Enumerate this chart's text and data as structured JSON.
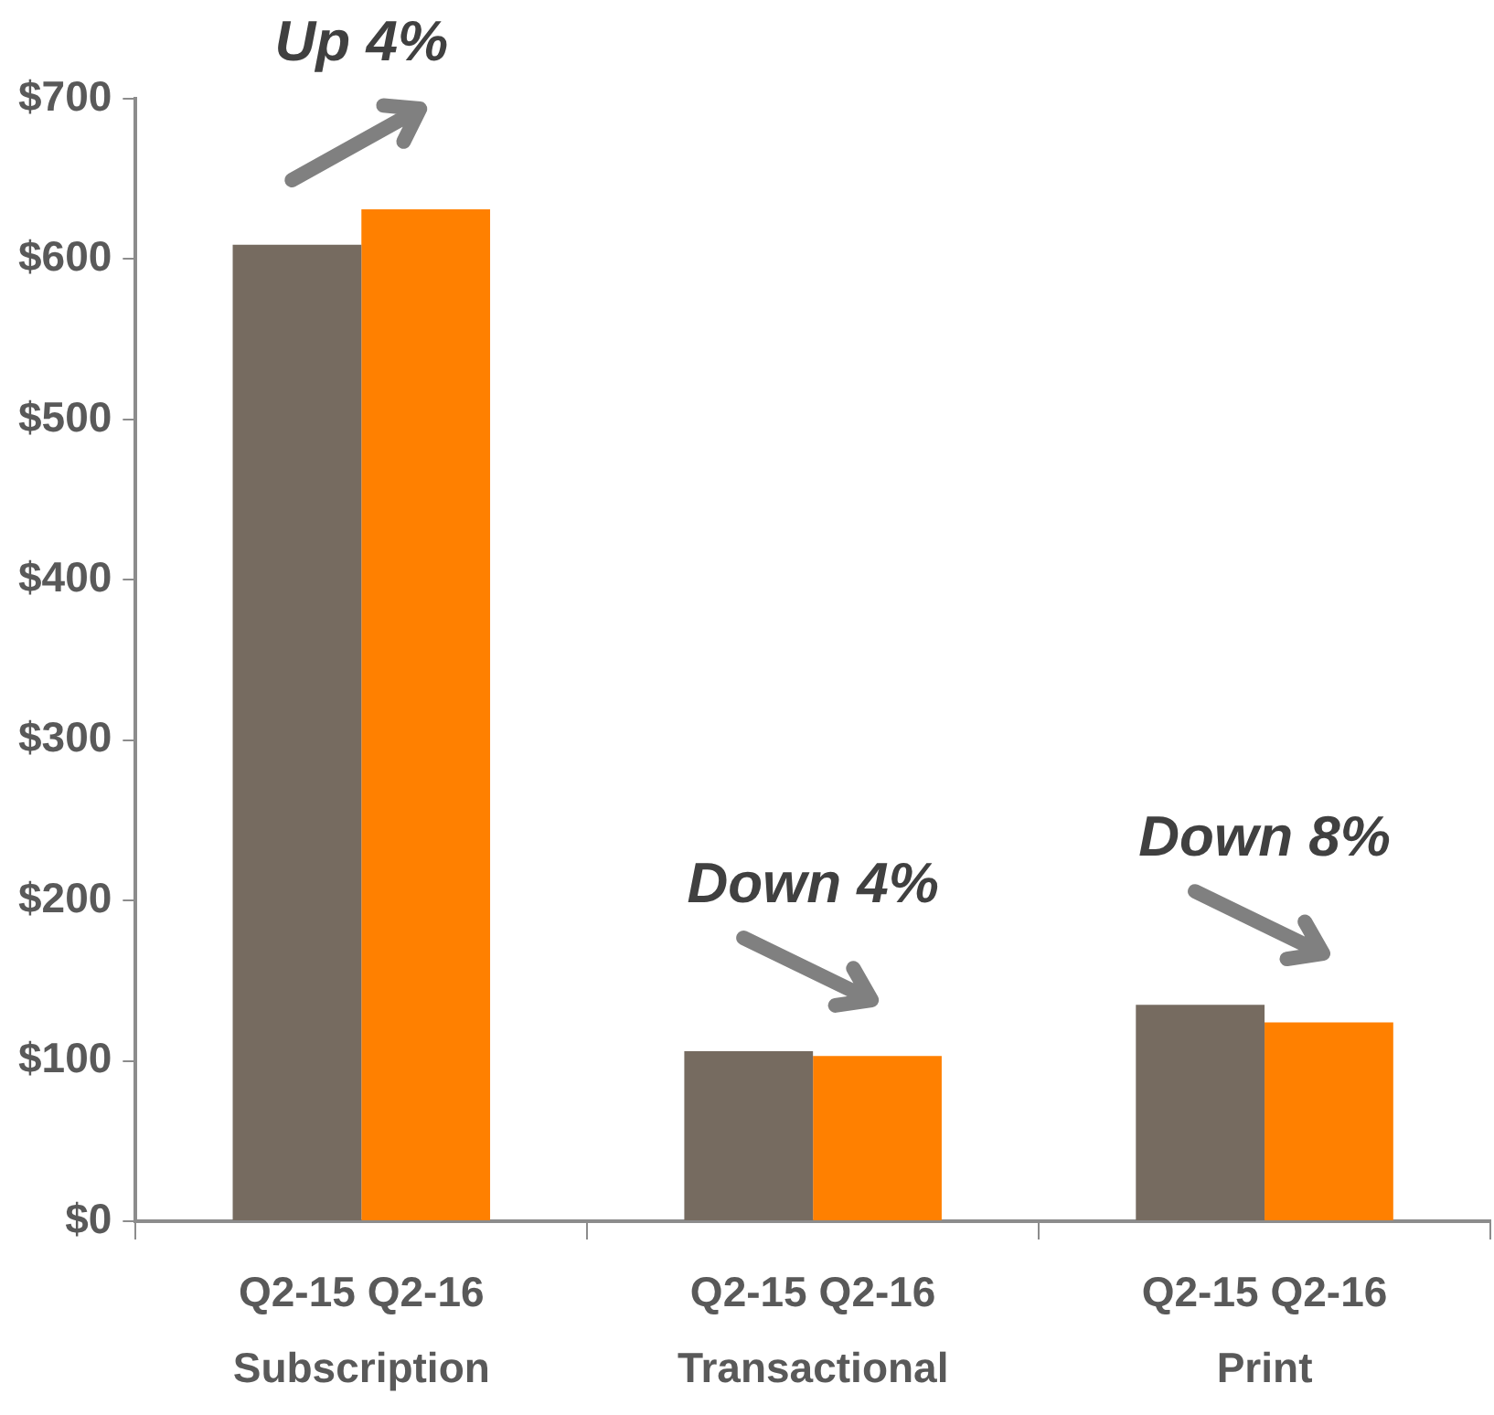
{
  "chart_data": {
    "type": "bar",
    "categories": [
      "Subscription",
      "Transactional",
      "Print"
    ],
    "series": [
      {
        "name": "Q2-15",
        "color": "#766b60",
        "values": [
          609,
          106,
          135
        ]
      },
      {
        "name": "Q2-16",
        "color": "#ff8000",
        "values": [
          631,
          103,
          124
        ]
      }
    ],
    "ylim": [
      0,
      700
    ],
    "yticks": [
      {
        "value": 0,
        "label": "$0"
      },
      {
        "value": 100,
        "label": "$100"
      },
      {
        "value": 200,
        "label": "$200"
      },
      {
        "value": 300,
        "label": "$300"
      },
      {
        "value": 400,
        "label": "$400"
      },
      {
        "value": 500,
        "label": "$500"
      },
      {
        "value": 600,
        "label": "$600"
      },
      {
        "value": 700,
        "label": "$700"
      }
    ],
    "annotations": [
      "Up 4%",
      "Down 4%",
      "Down 8%"
    ],
    "grid": false,
    "legend": false
  }
}
